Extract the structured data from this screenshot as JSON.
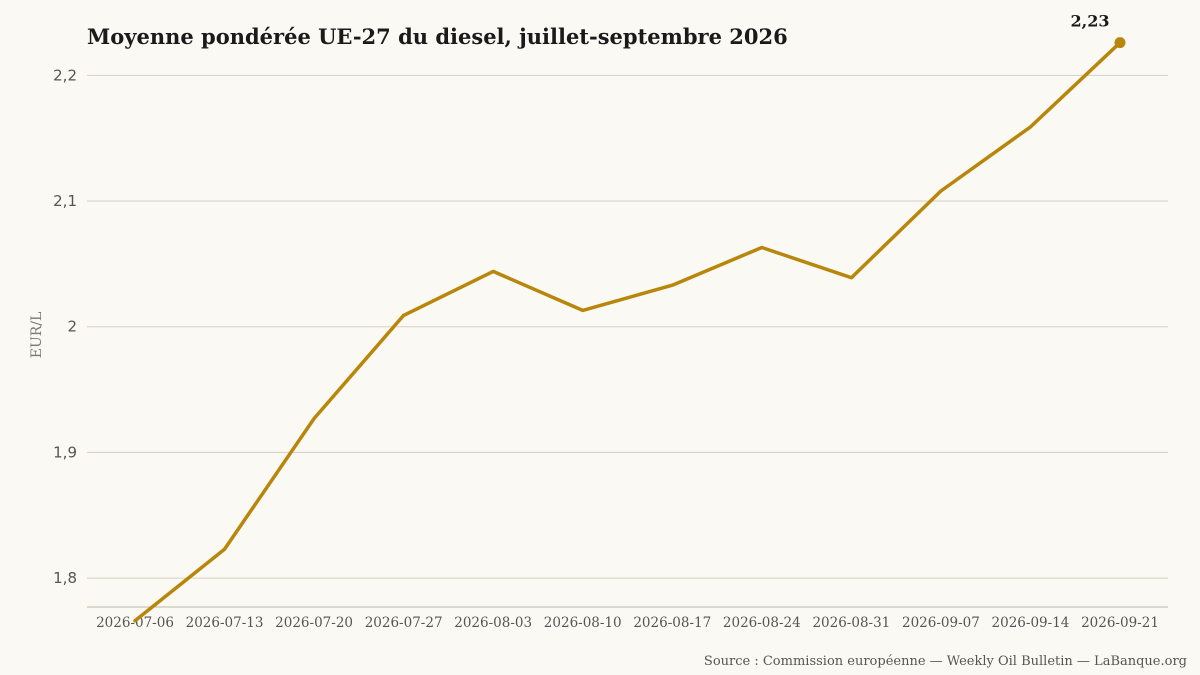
{
  "chart_data": {
    "type": "line",
    "title": "Moyenne pondérée UE-27 du diesel, juillet-septembre 2026",
    "ylabel": "EUR/L",
    "xlabel": "",
    "x": [
      "2026-07-06",
      "2026-07-13",
      "2026-07-20",
      "2026-07-27",
      "2026-08-03",
      "2026-08-10",
      "2026-08-17",
      "2026-08-24",
      "2026-08-31",
      "2026-09-07",
      "2026-09-14",
      "2026-09-21"
    ],
    "series": [
      {
        "values": [
          1.766,
          1.823,
          1.927,
          2.009,
          2.044,
          2.013,
          2.033,
          2.063,
          2.039,
          2.108,
          2.159,
          2.226
        ]
      }
    ],
    "ylim": [
      1.74,
      2.25
    ],
    "yticks": [
      1.8,
      1.9,
      2.0,
      2.1,
      2.2
    ],
    "ytick_labels": [
      "1,8",
      "1,9",
      "2",
      "2,1",
      "2,2"
    ],
    "last_point_label": "2,23",
    "grid": "horizontal",
    "line_color": "#b8860b",
    "source": "Source : Commission européenne — Weekly Oil Bulletin — LaBanque.org"
  }
}
